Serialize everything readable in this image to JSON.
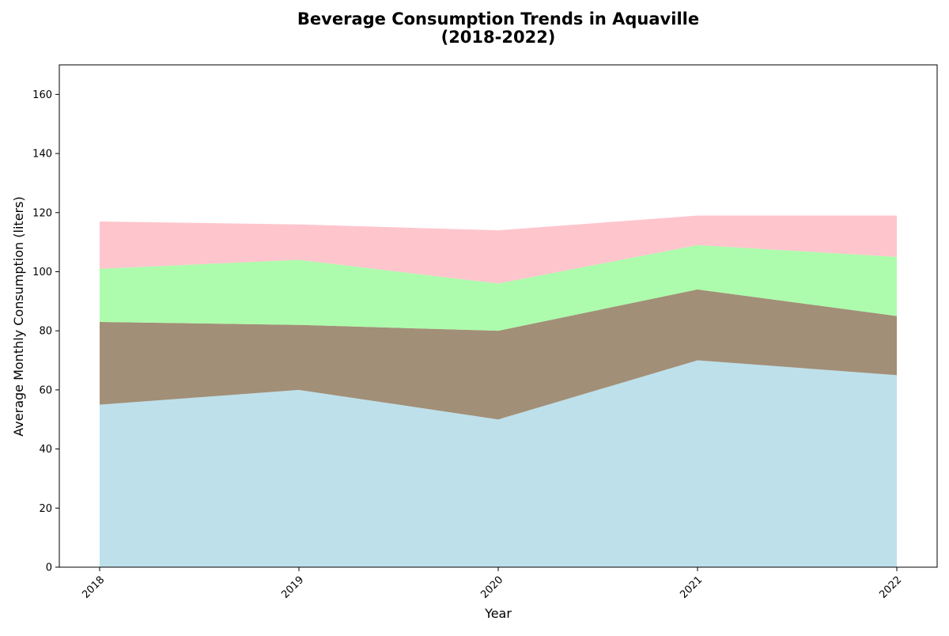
{
  "chart_data": {
    "type": "area",
    "stacked": true,
    "title_lines": [
      "Beverage Consumption Trends in Aquaville",
      "(2018-2022)"
    ],
    "xlabel": "Year",
    "ylabel": "Average Monthly Consumption (liters)",
    "x": [
      "2018",
      "2019",
      "2020",
      "2021",
      "2022"
    ],
    "ylim": [
      0,
      170
    ],
    "yticks": [
      0,
      20,
      40,
      60,
      80,
      100,
      120,
      140,
      160
    ],
    "grid": false,
    "legend": "none",
    "x_tick_rotation": "45 degrees",
    "series": [
      {
        "values": [
          55,
          60,
          50,
          70,
          65
        ],
        "color": "#add8e6"
      },
      {
        "values": [
          28,
          22,
          30,
          24,
          20
        ],
        "color": "#8b7355"
      },
      {
        "values": [
          18,
          22,
          16,
          15,
          20
        ],
        "color": "#98fb98"
      },
      {
        "values": [
          16,
          12,
          18,
          10,
          14
        ],
        "color": "#ffb6c1"
      }
    ]
  }
}
